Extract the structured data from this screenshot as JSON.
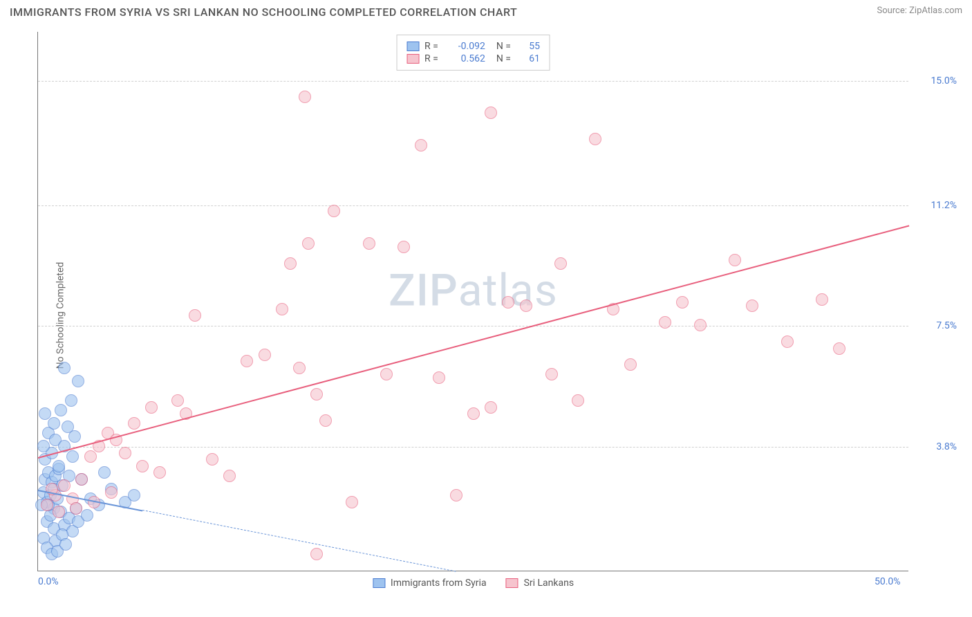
{
  "header": {
    "title": "IMMIGRANTS FROM SYRIA VS SRI LANKAN NO SCHOOLING COMPLETED CORRELATION CHART",
    "source_prefix": "Source: ",
    "source_name": "ZipAtlas.com"
  },
  "watermark": {
    "zip": "ZIP",
    "atlas": "atlas"
  },
  "chart": {
    "type": "scatter",
    "y_axis_label": "No Schooling Completed",
    "xlim": [
      0,
      50
    ],
    "ylim": [
      0,
      16.5
    ],
    "background_color": "#ffffff",
    "grid_color": "#d0d0d0",
    "axis_color": "#777777",
    "tick_label_color": "#4a7bd0",
    "tick_fontsize": 14,
    "x_ticks": [
      {
        "value": 0,
        "label": "0.0%"
      },
      {
        "value": 50,
        "label": "50.0%"
      }
    ],
    "y_ticks": [
      {
        "value": 3.8,
        "label": "3.8%"
      },
      {
        "value": 7.5,
        "label": "7.5%"
      },
      {
        "value": 11.2,
        "label": "11.2%"
      },
      {
        "value": 15.0,
        "label": "15.0%"
      }
    ],
    "marker_radius": 9,
    "marker_opacity": 0.35,
    "series": [
      {
        "name": "Immigrants from Syria",
        "fill_color": "#9ec3ef",
        "stroke_color": "#4a7bd0",
        "R": "-0.092",
        "N": "55",
        "trend": {
          "x1": 0,
          "y1": 2.5,
          "x2": 24,
          "y2": 0,
          "width": 2,
          "dash": true,
          "color": "#6a95d8",
          "solid_until_x": 6
        },
        "points": [
          [
            0.3,
            2.4
          ],
          [
            0.4,
            2.8
          ],
          [
            0.5,
            2.1
          ],
          [
            0.6,
            3.0
          ],
          [
            0.7,
            2.3
          ],
          [
            0.8,
            2.7
          ],
          [
            0.9,
            1.9
          ],
          [
            1.0,
            2.9
          ],
          [
            1.1,
            2.2
          ],
          [
            1.2,
            3.1
          ],
          [
            0.5,
            1.5
          ],
          [
            0.7,
            1.7
          ],
          [
            0.9,
            1.3
          ],
          [
            1.3,
            1.8
          ],
          [
            1.5,
            1.4
          ],
          [
            1.8,
            1.6
          ],
          [
            2.0,
            1.2
          ],
          [
            2.2,
            1.9
          ],
          [
            1.0,
            0.9
          ],
          [
            1.4,
            1.1
          ],
          [
            0.4,
            3.4
          ],
          [
            0.8,
            3.6
          ],
          [
            1.2,
            3.2
          ],
          [
            0.6,
            4.2
          ],
          [
            1.0,
            4.0
          ],
          [
            1.5,
            3.8
          ],
          [
            2.0,
            3.5
          ],
          [
            2.5,
            2.8
          ],
          [
            3.0,
            2.2
          ],
          [
            3.5,
            2.0
          ],
          [
            0.3,
            1.0
          ],
          [
            0.5,
            0.7
          ],
          [
            0.8,
            0.5
          ],
          [
            1.1,
            0.6
          ],
          [
            1.6,
            0.8
          ],
          [
            2.3,
            1.5
          ],
          [
            2.8,
            1.7
          ],
          [
            1.9,
            5.2
          ],
          [
            2.3,
            5.8
          ],
          [
            1.5,
            6.2
          ],
          [
            0.4,
            4.8
          ],
          [
            0.9,
            4.5
          ],
          [
            1.3,
            4.9
          ],
          [
            1.7,
            4.4
          ],
          [
            2.1,
            4.1
          ],
          [
            0.6,
            2.0
          ],
          [
            0.9,
            2.5
          ],
          [
            1.4,
            2.6
          ],
          [
            1.8,
            2.9
          ],
          [
            5.0,
            2.1
          ],
          [
            5.5,
            2.3
          ],
          [
            4.2,
            2.5
          ],
          [
            3.8,
            3.0
          ],
          [
            0.2,
            2.0
          ],
          [
            0.3,
            3.8
          ]
        ]
      },
      {
        "name": "Sri Lankans",
        "fill_color": "#f6c4ce",
        "stroke_color": "#e85f7d",
        "R": "0.562",
        "N": "61",
        "trend": {
          "x1": 0,
          "y1": 3.5,
          "x2": 50,
          "y2": 10.6,
          "width": 2.5,
          "dash": false,
          "color": "#e85f7d"
        },
        "points": [
          [
            0.5,
            2.0
          ],
          [
            1.0,
            2.3
          ],
          [
            1.5,
            2.6
          ],
          [
            2.0,
            2.2
          ],
          [
            2.5,
            2.8
          ],
          [
            3.0,
            3.5
          ],
          [
            3.5,
            3.8
          ],
          [
            4.0,
            4.2
          ],
          [
            4.5,
            4.0
          ],
          [
            5.0,
            3.6
          ],
          [
            5.5,
            4.5
          ],
          [
            6.0,
            3.2
          ],
          [
            6.5,
            5.0
          ],
          [
            7.0,
            3.0
          ],
          [
            8.0,
            5.2
          ],
          [
            8.5,
            4.8
          ],
          [
            9.0,
            7.8
          ],
          [
            10.0,
            3.4
          ],
          [
            11.0,
            2.9
          ],
          [
            12.0,
            6.4
          ],
          [
            13.0,
            6.6
          ],
          [
            14.0,
            8.0
          ],
          [
            14.5,
            9.4
          ],
          [
            15.0,
            6.2
          ],
          [
            15.3,
            14.5
          ],
          [
            15.5,
            10.0
          ],
          [
            16.0,
            5.4
          ],
          [
            16.5,
            4.6
          ],
          [
            17.0,
            11.0
          ],
          [
            18.0,
            2.1
          ],
          [
            19.0,
            10.0
          ],
          [
            20.0,
            6.0
          ],
          [
            21.0,
            9.9
          ],
          [
            22.0,
            13.0
          ],
          [
            23.0,
            5.9
          ],
          [
            24.0,
            2.3
          ],
          [
            25.0,
            4.8
          ],
          [
            26.0,
            5.0
          ],
          [
            27.0,
            8.2
          ],
          [
            28.0,
            8.1
          ],
          [
            29.5,
            6.0
          ],
          [
            30.0,
            9.4
          ],
          [
            31.0,
            5.2
          ],
          [
            32.0,
            13.2
          ],
          [
            33.0,
            8.0
          ],
          [
            34.0,
            6.3
          ],
          [
            36.0,
            7.6
          ],
          [
            37.0,
            8.2
          ],
          [
            38.0,
            7.5
          ],
          [
            40.0,
            9.5
          ],
          [
            41.0,
            8.1
          ],
          [
            43.0,
            7.0
          ],
          [
            45.0,
            8.3
          ],
          [
            46.0,
            6.8
          ],
          [
            1.2,
            1.8
          ],
          [
            2.2,
            1.9
          ],
          [
            3.2,
            2.1
          ],
          [
            4.2,
            2.4
          ],
          [
            0.8,
            2.5
          ],
          [
            16.0,
            0.5
          ],
          [
            26.0,
            14.0
          ]
        ]
      }
    ]
  },
  "legend_top": {
    "R_label": "R =",
    "N_label": "N ="
  },
  "legend_bottom": {}
}
